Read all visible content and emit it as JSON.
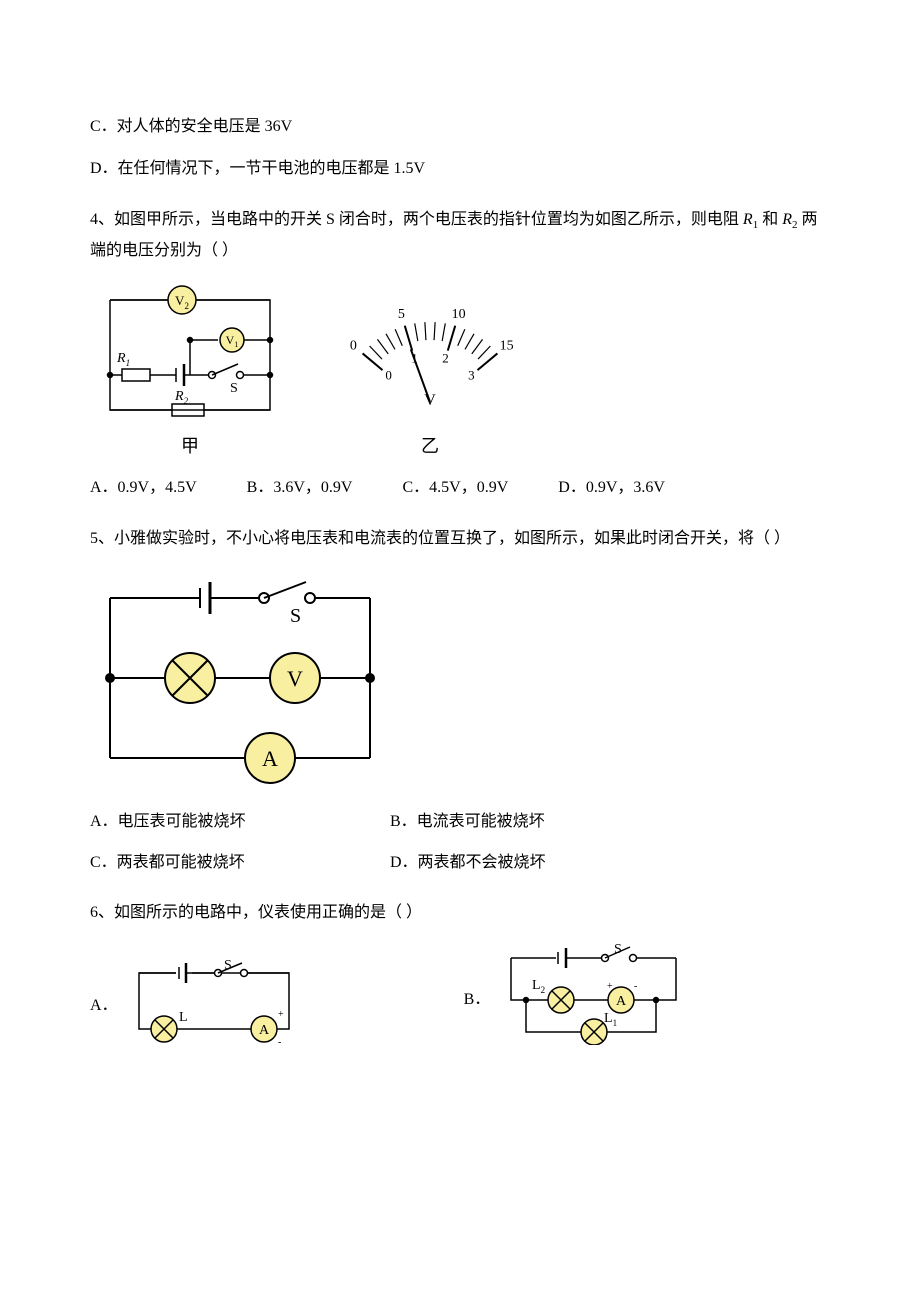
{
  "optC": "C．对人体的安全电压是 36V",
  "optD": "D．在任何情况下，一节干电池的电压都是 1.5V",
  "q4": {
    "text_a": "4、如图甲所示，当电路中的开关 S 闭合时，两个电压表的指针位置均为如图乙所示，则电阻 ",
    "text_b": " 和 ",
    "text_c": " 两端的电压分别为（    ）",
    "r1": "R",
    "r1_sub": "1",
    "r2": "R",
    "r2_sub": "2",
    "caption_a": "甲",
    "caption_b": "乙",
    "circuit": {
      "V2": "V",
      "V2_sub": "2",
      "V1": "V",
      "V1_sub": "1",
      "R1": "R",
      "R1_sub": "1",
      "R2": "R",
      "R2_sub": "2",
      "S": "S"
    },
    "meter": {
      "top_labels": [
        "0",
        "5",
        "10",
        "15"
      ],
      "bottom_labels": [
        "0",
        "1",
        "2",
        "3"
      ],
      "unit": "V"
    },
    "opts": {
      "A": "A．0.9V，4.5V",
      "B": "B．3.6V，0.9V",
      "C": "C．4.5V，0.9V",
      "D": "D．0.9V，3.6V"
    }
  },
  "q5": {
    "text": "5、小雅做实验时，不小心将电压表和电流表的位置互换了，如图所示，如果此时闭合开关，将（    ）",
    "S": "S",
    "V": "V",
    "A": "A",
    "opts": {
      "A": "A．电压表可能被烧坏",
      "B": "B．电流表可能被烧坏",
      "C": "C．两表都可能被烧坏",
      "D": "D．两表都不会被烧坏"
    }
  },
  "q6": {
    "text": "6、如图所示的电路中，仪表使用正确的是（    ）",
    "A_label": "A．",
    "B_label": "B．",
    "S": "S",
    "L": "L",
    "L1": "L",
    "L1_sub": "1",
    "L2": "L",
    "L2_sub": "2",
    "Ameter": "A",
    "plus": "+",
    "minus": "-"
  },
  "colors": {
    "stroke": "#000000",
    "meter_fill": "#f8f0a0",
    "bulb_fill": "#f8f0a0"
  }
}
